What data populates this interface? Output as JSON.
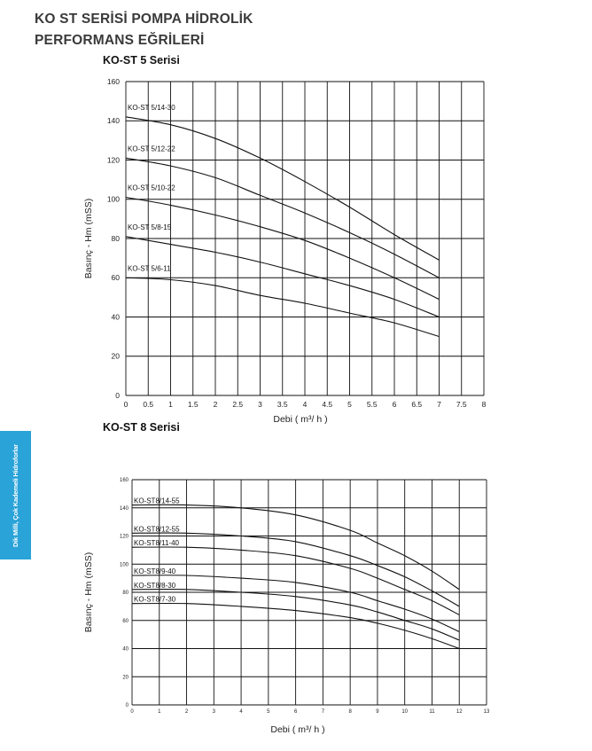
{
  "page": {
    "title_line1": "KO ST SERİSİ POMPA HİDROLİK",
    "title_line2": "PERFORMANS EĞRİLERİ",
    "side_tab": "Dik Milli, Çok Kademeli Hidroforlar"
  },
  "colors": {
    "side_tab": "#2aa3d8",
    "lines": "#111111"
  },
  "chart_data": [
    {
      "type": "line",
      "title": "KO-ST 5 Serisi",
      "xlabel": "Debi ( m³/ h )",
      "ylabel": "Basınç - Hm (mSS)",
      "xlim": [
        0,
        8
      ],
      "ylim": [
        0,
        160
      ],
      "x_ticks": [
        0,
        0.5,
        1,
        1.5,
        2,
        2.5,
        3,
        3.5,
        4,
        4.5,
        5,
        5.5,
        6,
        6.5,
        7,
        7.5,
        8
      ],
      "y_ticks": [
        0,
        20,
        40,
        60,
        80,
        100,
        120,
        140,
        160
      ],
      "grid": true,
      "series": [
        {
          "name": "KO-ST 5/14-30",
          "x": [
            0,
            1,
            2,
            3,
            4,
            5,
            6,
            7
          ],
          "values": [
            142,
            138,
            131,
            121,
            109,
            96,
            82,
            69
          ]
        },
        {
          "name": "KO-ST 5/12-22",
          "x": [
            0,
            1,
            2,
            3,
            4,
            5,
            6,
            7
          ],
          "values": [
            121,
            117,
            111,
            102,
            93,
            83,
            72,
            60
          ]
        },
        {
          "name": "KO-ST 5/10-22",
          "x": [
            0,
            1,
            2,
            3,
            4,
            5,
            6,
            7
          ],
          "values": [
            101,
            97,
            92,
            86,
            79,
            70,
            60,
            49
          ]
        },
        {
          "name": "KO-ST 5/8-15",
          "x": [
            0,
            1,
            2,
            3,
            4,
            5,
            6,
            7
          ],
          "values": [
            81,
            77,
            73,
            68,
            62,
            56,
            49,
            40
          ]
        },
        {
          "name": "KO-ST 5/6-11",
          "x": [
            0,
            1,
            2,
            3,
            4,
            5,
            6,
            7
          ],
          "values": [
            60,
            59,
            56,
            51,
            47,
            42,
            37,
            30
          ]
        }
      ]
    },
    {
      "type": "line",
      "title": "KO-ST 8 Serisi",
      "xlabel": "Debi ( m³/ h )",
      "ylabel": "Basınç - Hm (mSS)",
      "xlim": [
        0,
        13
      ],
      "ylim": [
        0,
        160
      ],
      "x_ticks": [
        0,
        1,
        2,
        3,
        4,
        5,
        6,
        7,
        8,
        9,
        10,
        11,
        12,
        13
      ],
      "y_ticks": [
        0,
        20,
        40,
        60,
        80,
        100,
        120,
        140,
        160
      ],
      "grid": true,
      "series": [
        {
          "name": "KO-ST8/14-55",
          "x": [
            0,
            2,
            4,
            6,
            8,
            9,
            10,
            11,
            12
          ],
          "values": [
            142,
            142,
            140,
            135,
            124,
            115,
            106,
            95,
            82
          ]
        },
        {
          "name": "KO-ST8/12-55",
          "x": [
            0,
            2,
            4,
            6,
            8,
            9,
            10,
            11,
            12
          ],
          "values": [
            122,
            122,
            120,
            116,
            106,
            99,
            91,
            81,
            70
          ]
        },
        {
          "name": "KO-ST8/11-40",
          "x": [
            0,
            2,
            4,
            6,
            8,
            9,
            10,
            11,
            12
          ],
          "values": [
            112,
            112,
            110,
            106,
            97,
            90,
            82,
            74,
            64
          ]
        },
        {
          "name": "KO-ST8/9-40",
          "x": [
            0,
            2,
            4,
            6,
            8,
            9,
            10,
            11,
            12
          ],
          "values": [
            92,
            92,
            90,
            87,
            80,
            74,
            68,
            61,
            52
          ]
        },
        {
          "name": "KO-ST8/8-30",
          "x": [
            0,
            2,
            4,
            6,
            8,
            9,
            10,
            11,
            12
          ],
          "values": [
            82,
            82,
            80,
            77,
            71,
            66,
            60,
            54,
            46
          ]
        },
        {
          "name": "KO-ST8/7-30",
          "x": [
            0,
            2,
            4,
            6,
            8,
            9,
            10,
            11,
            12
          ],
          "values": [
            72,
            72,
            70,
            67,
            62,
            58,
            53,
            47,
            40
          ]
        }
      ]
    }
  ]
}
